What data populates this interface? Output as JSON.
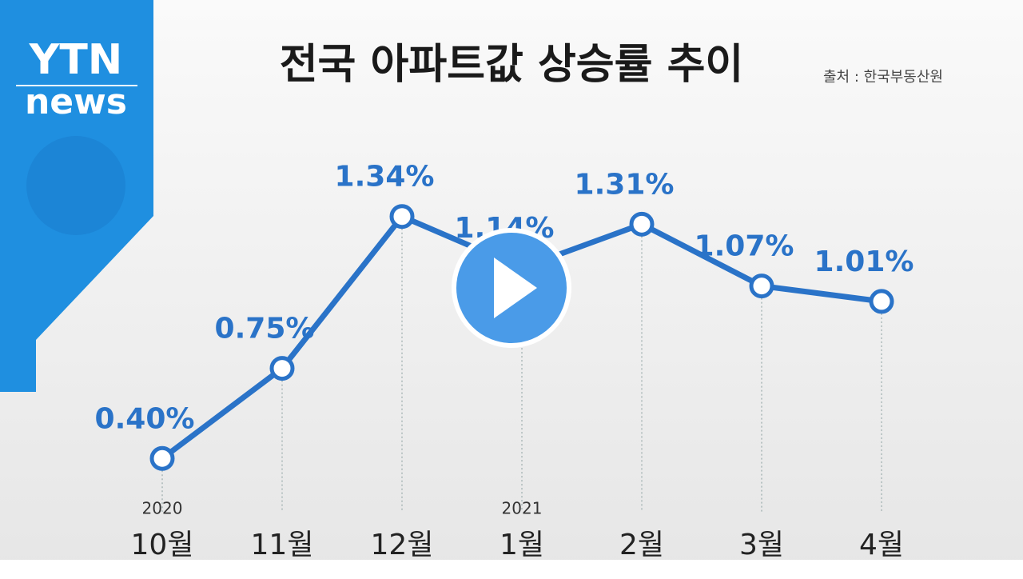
{
  "logo": {
    "top": "YTN",
    "bottom": "news"
  },
  "chart_data": {
    "type": "line",
    "title": "전국 아파트값 상승률 추이",
    "source": "출처 : 한국부동산원",
    "categories": [
      "10월",
      "11월",
      "12월",
      "1월",
      "2월",
      "3월",
      "4월"
    ],
    "year_labels": [
      "2020",
      null,
      null,
      "2021",
      null,
      null,
      null
    ],
    "values": [
      0.4,
      0.75,
      1.34,
      1.14,
      1.31,
      1.07,
      1.01
    ],
    "value_labels": [
      "0.40%",
      "0.75%",
      "1.34%",
      "1.14%",
      "1.31%",
      "1.07%",
      "1.01%"
    ],
    "color": "#2a73c8",
    "ylim": [
      0,
      1.6
    ]
  }
}
